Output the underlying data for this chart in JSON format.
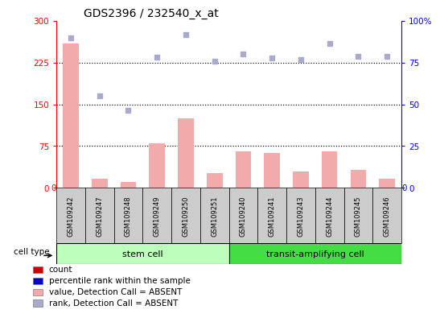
{
  "title": "GDS2396 / 232540_x_at",
  "samples": [
    "GSM109242",
    "GSM109247",
    "GSM109248",
    "GSM109249",
    "GSM109250",
    "GSM109251",
    "GSM109240",
    "GSM109241",
    "GSM109243",
    "GSM109244",
    "GSM109245",
    "GSM109246"
  ],
  "bar_values": [
    260,
    17,
    10,
    80,
    125,
    27,
    65,
    62,
    30,
    65,
    32,
    17
  ],
  "scatter_values": [
    270,
    165,
    140,
    235,
    275,
    228,
    240,
    233,
    230,
    260,
    237,
    237
  ],
  "ylim_left": [
    0,
    300
  ],
  "ylim_right": [
    0,
    100
  ],
  "yticks_left": [
    0,
    75,
    150,
    225,
    300
  ],
  "yticks_right": [
    0,
    25,
    50,
    75,
    100
  ],
  "ytick_right_labels": [
    "0",
    "25",
    "50",
    "75",
    "100%"
  ],
  "hlines": [
    75,
    150,
    225
  ],
  "bar_color": "#f2aaaa",
  "scatter_color": "#aaaacc",
  "stem_color": "#bbffbb",
  "transit_color": "#44dd44",
  "bg_gray": "#cccccc",
  "legend_items": [
    {
      "label": "count",
      "color": "#cc0000"
    },
    {
      "label": "percentile rank within the sample",
      "color": "#0000cc"
    },
    {
      "label": "value, Detection Call = ABSENT",
      "color": "#f2aaaa"
    },
    {
      "label": "rank, Detection Call = ABSENT",
      "color": "#aaaacc"
    }
  ]
}
